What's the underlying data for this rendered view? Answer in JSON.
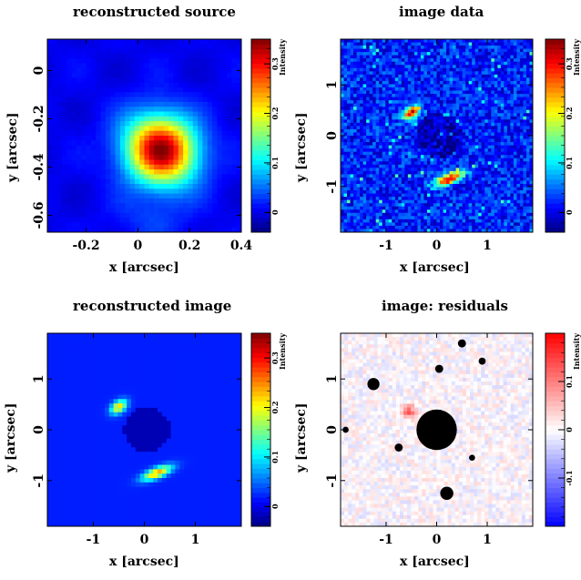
{
  "chart_data": [
    {
      "type": "heatmap",
      "title": "reconstructed source",
      "xlabel": "x [arcsec]",
      "ylabel": "y [arcsec]",
      "xlim": [
        -0.35,
        0.4
      ],
      "ylim": [
        -0.67,
        0.13
      ],
      "xticks": [
        "-0.2",
        "0",
        "0.2",
        "0.4"
      ],
      "xtick_values": [
        -0.2,
        0,
        0.2,
        0.4
      ],
      "yticks": [
        "-0.6",
        "-0.4",
        "-0.2",
        "0"
      ],
      "ytick_values": [
        -0.6,
        -0.4,
        -0.2,
        0
      ],
      "colorbar": {
        "label": "Intensity",
        "ticks": [
          "0",
          "0.1",
          "0.2",
          "0.3"
        ],
        "tick_values": [
          0,
          0.1,
          0.2,
          0.3
        ],
        "range": [
          -0.04,
          0.35
        ],
        "colormap": "jet"
      },
      "features": [
        {
          "kind": "blob",
          "x": 0.09,
          "y": -0.33,
          "sigma_x": 0.09,
          "sigma_y": 0.1,
          "peak": 0.34
        }
      ]
    },
    {
      "type": "heatmap",
      "title": "image data",
      "xlabel": "x [arcsec]",
      "ylabel": "y [arcsec]",
      "xlim": [
        -1.9,
        1.9
      ],
      "ylim": [
        -1.9,
        1.9
      ],
      "xticks": [
        "-1",
        "0",
        "1"
      ],
      "xtick_values": [
        -1,
        0,
        1
      ],
      "yticks": [
        "-1",
        "0",
        "1"
      ],
      "ytick_values": [
        -1,
        0,
        1
      ],
      "colorbar": {
        "label": "Intensity",
        "ticks": [
          "0",
          "0.1",
          "0.2",
          "0.3"
        ],
        "tick_values": [
          0,
          0.1,
          0.2,
          0.3
        ],
        "range": [
          -0.04,
          0.35
        ],
        "colormap": "jet"
      },
      "features": [
        {
          "kind": "arc",
          "x": -0.5,
          "y": 0.45,
          "peak": 0.3
        },
        {
          "kind": "arc",
          "x": 0.25,
          "y": -0.85,
          "peak": 0.3
        },
        {
          "kind": "dark-disk",
          "x": 0.05,
          "y": 0.0,
          "radius": 0.45
        }
      ]
    },
    {
      "type": "heatmap",
      "title": "reconstructed image",
      "xlabel": "x [arcsec]",
      "ylabel": "y [arcsec]",
      "xlim": [
        -1.9,
        1.9
      ],
      "ylim": [
        -1.9,
        1.9
      ],
      "xticks": [
        "-1",
        "0",
        "1"
      ],
      "xtick_values": [
        -1,
        0,
        1
      ],
      "yticks": [
        "-1",
        "0",
        "1"
      ],
      "ytick_values": [
        -1,
        0,
        1
      ],
      "colorbar": {
        "label": "Intensity",
        "ticks": [
          "0",
          "0.1",
          "0.2",
          "0.3"
        ],
        "tick_values": [
          0,
          0.1,
          0.2,
          0.3
        ],
        "range": [
          -0.04,
          0.35
        ],
        "colormap": "jet"
      },
      "features": [
        {
          "kind": "arc",
          "x": -0.5,
          "y": 0.45,
          "peak": 0.2
        },
        {
          "kind": "arc",
          "x": 0.25,
          "y": -0.85,
          "peak": 0.22
        },
        {
          "kind": "dark-disk",
          "x": 0.05,
          "y": 0.0,
          "radius": 0.45
        }
      ]
    },
    {
      "type": "heatmap",
      "title": "image: residuals",
      "xlabel": "x [arcsec]",
      "ylabel": "y [arcsec]",
      "xlim": [
        -1.9,
        1.9
      ],
      "ylim": [
        -1.9,
        1.9
      ],
      "xticks": [
        "-1",
        "0",
        "1"
      ],
      "xtick_values": [
        -1,
        0,
        1
      ],
      "yticks": [
        "-1",
        "0",
        "1"
      ],
      "ytick_values": [
        -1,
        0,
        1
      ],
      "colorbar": {
        "label": "Intensity",
        "ticks": [
          "-0.1",
          "0",
          "0.1"
        ],
        "tick_values": [
          -0.1,
          0,
          0.1
        ],
        "range": [
          -0.2,
          0.2
        ],
        "colormap": "blue-white-red"
      },
      "masked_regions": [
        {
          "x": 0.0,
          "y": 0.0,
          "radius": 0.4
        },
        {
          "x": -1.25,
          "y": 0.9,
          "radius": 0.12
        },
        {
          "x": 0.05,
          "y": 1.2,
          "radius": 0.08
        },
        {
          "x": 0.5,
          "y": 1.7,
          "radius": 0.08
        },
        {
          "x": 0.9,
          "y": 1.35,
          "radius": 0.07
        },
        {
          "x": -1.8,
          "y": 0.0,
          "radius": 0.06
        },
        {
          "x": -0.75,
          "y": -0.35,
          "radius": 0.08
        },
        {
          "x": 0.7,
          "y": -0.55,
          "radius": 0.06
        },
        {
          "x": 0.2,
          "y": -1.25,
          "radius": 0.13
        }
      ]
    }
  ]
}
